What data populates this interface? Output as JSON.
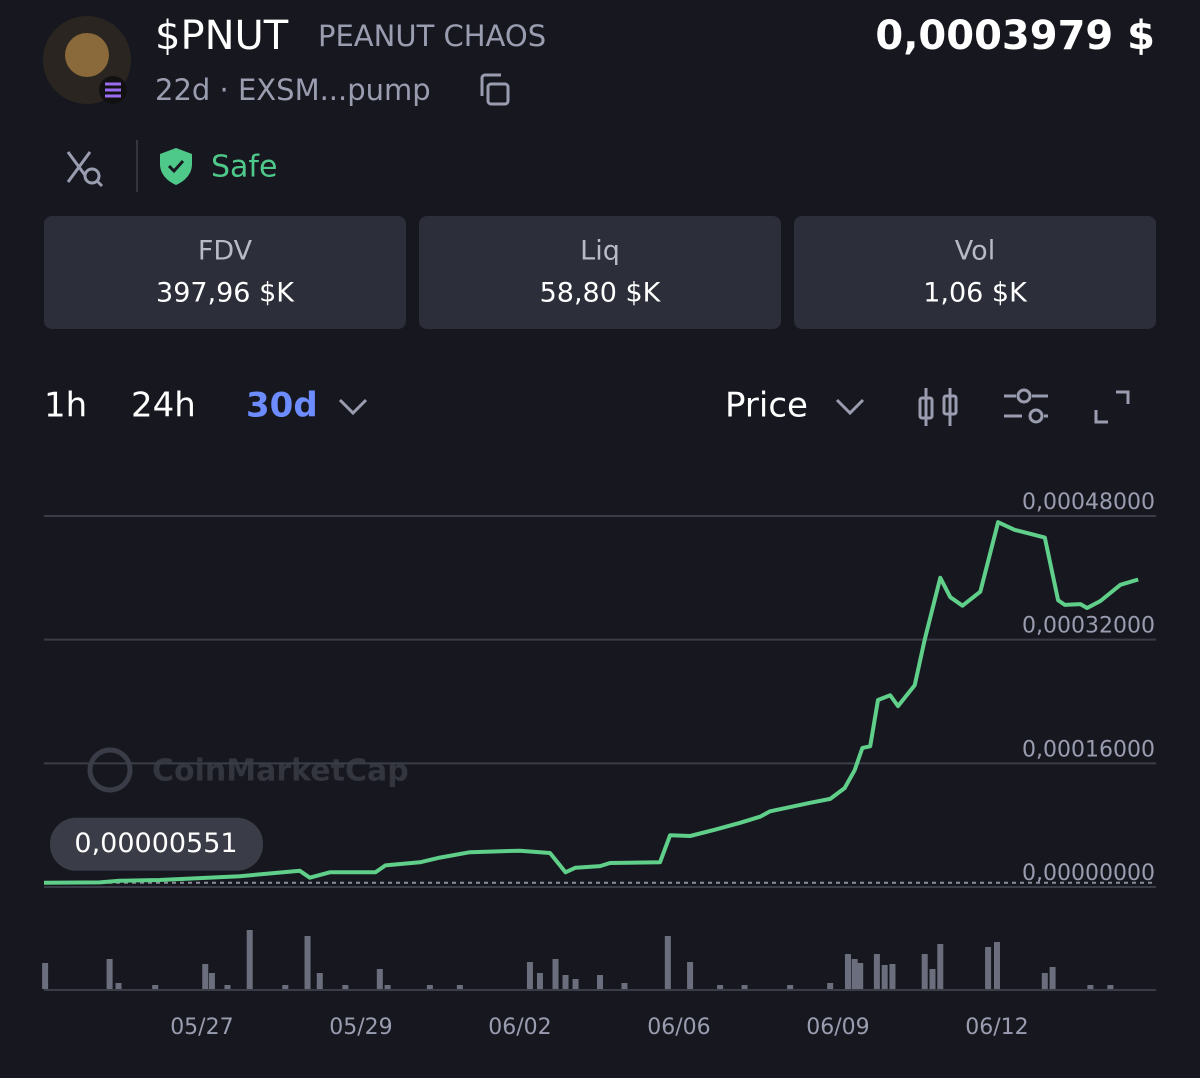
{
  "header": {
    "ticker": "$PNUT",
    "name": "PEANUT CHAOS",
    "meta": "22d · EXSM...pump",
    "price": "0,0003979 $"
  },
  "security": {
    "badge": "Safe"
  },
  "stats": [
    {
      "label": "FDV",
      "value": "397,96 $K"
    },
    {
      "label": "Liq",
      "value": "58,80 $K"
    },
    {
      "label": "Vol",
      "value": "1,06 $K"
    }
  ],
  "timeframes": [
    "1h",
    "24h",
    "30d"
  ],
  "chart_controls": {
    "metric": "Price"
  },
  "chart_data": [
    {
      "type": "line",
      "color": "#5fcf8a",
      "grid": true,
      "watermark": "CoinMarketCap",
      "x": [
        0,
        5.0,
        6.8,
        10.4,
        17.6,
        23.0,
        23.9,
        25.7,
        29.8,
        30.7,
        33.8,
        35.6,
        38.3,
        42.8,
        45.5,
        46.9,
        47.8,
        50.0,
        50.9,
        55.4,
        56.3,
        58.1,
        60.3,
        62.6,
        64.4,
        65.3,
        68.9,
        70.7,
        72.0,
        72.9,
        73.6,
        74.3,
        75.0,
        76.1,
        76.8,
        78.3,
        79.2,
        80.6,
        81.5,
        82.6,
        84.2,
        85.8,
        87.3,
        88.7,
        90.0,
        91.2,
        91.8,
        93.2,
        93.8,
        95.0,
        96.8,
        98.4
      ],
      "values": [
        5.51e-06,
        6e-06,
        8e-06,
        9e-06,
        1.4e-05,
        2.1e-05,
        1.2e-05,
        1.9e-05,
        1.9e-05,
        2.8e-05,
        3.2e-05,
        3.8e-05,
        4.5e-05,
        4.7e-05,
        4.4e-05,
        1.9e-05,
        2.5e-05,
        2.7e-05,
        3.1e-05,
        3.2e-05,
        6.7e-05,
        6.6e-05,
        7.4e-05,
        8.3e-05,
        9.1e-05,
        9.8e-05,
        0.000109,
        0.000114,
        0.000128,
        0.000151,
        0.00018,
        0.000182,
        0.000242,
        0.000248,
        0.000234,
        0.000261,
        0.00032,
        0.0004,
        0.000375,
        0.000364,
        0.000382,
        0.000472,
        0.000462,
        0.000457,
        0.000452,
        0.000371,
        0.000365,
        0.000366,
        0.000361,
        0.00037,
        0.000391,
        0.0003979
      ],
      "xlim": [
        0,
        100
      ],
      "ylim": [
        0,
        0.00048
      ],
      "yticks": [
        {
          "value": 0.00048,
          "label": "0,00048000"
        },
        {
          "value": 0.00032,
          "label": "0,00032000"
        },
        {
          "value": 0.00016,
          "label": "0,00016000"
        },
        {
          "value": 0,
          "label": "0,00000000"
        }
      ],
      "annotations": [
        {
          "value": 5.51e-06,
          "label": "0,00000551"
        }
      ]
    },
    {
      "type": "bar",
      "color": "#6b6e7c",
      "x": [
        0.1,
        5.9,
        6.7,
        10.0,
        14.5,
        15.1,
        16.5,
        18.5,
        21.7,
        23.7,
        24.8,
        27.1,
        30.2,
        30.9,
        34.7,
        37.4,
        43.7,
        44.6,
        46.0,
        46.9,
        47.8,
        50.0,
        52.2,
        56.1,
        58.1,
        60.8,
        63.0,
        67.1,
        70.7,
        72.3,
        72.9,
        73.4,
        74.9,
        75.6,
        76.3,
        79.2,
        79.9,
        80.6,
        84.9,
        85.7,
        90.0,
        90.7,
        94.1,
        95.9
      ],
      "values": [
        26,
        30,
        6,
        4,
        25,
        16,
        4,
        59,
        4,
        53,
        16,
        4,
        20,
        4,
        4,
        4,
        27,
        16,
        30,
        14,
        10,
        14,
        6,
        53,
        27,
        4,
        4,
        4,
        6,
        35,
        30,
        26,
        35,
        24,
        25,
        35,
        20,
        45,
        42,
        47,
        16,
        22,
        4,
        4
      ],
      "xlim": [
        0,
        100
      ],
      "ylim": [
        0,
        60
      ],
      "xticks": [
        {
          "value": 14.2,
          "label": "05/27"
        },
        {
          "value": 28.5,
          "label": "05/29"
        },
        {
          "value": 42.8,
          "label": "06/02"
        },
        {
          "value": 57.1,
          "label": "06/06"
        },
        {
          "value": 71.4,
          "label": "06/09"
        },
        {
          "value": 85.7,
          "label": "06/12"
        }
      ]
    }
  ]
}
